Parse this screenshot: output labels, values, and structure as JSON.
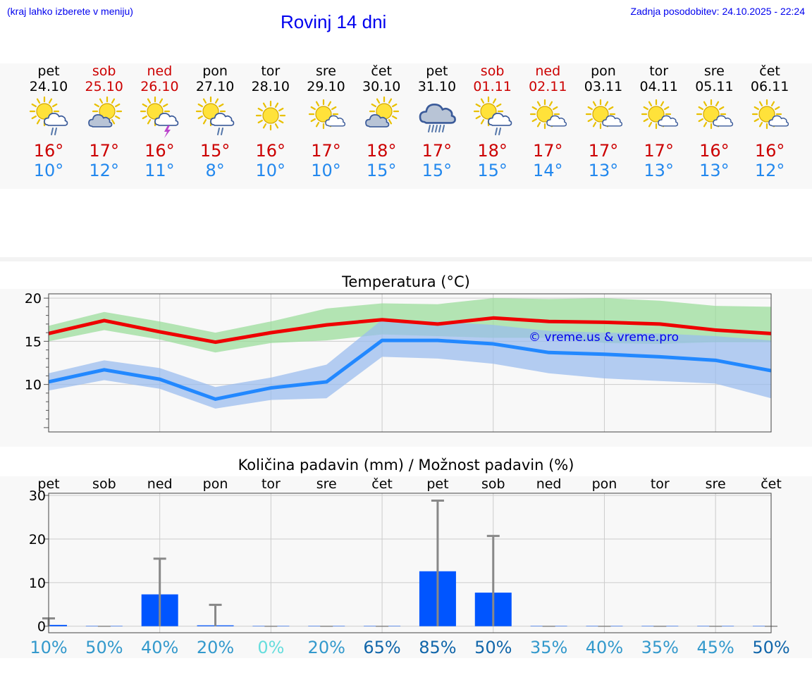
{
  "header": {
    "note": "(kraj lahko izberete v meniju)",
    "title": "Rovinj 14 dni",
    "updated": "Zadnja posodobitev: 24.10.2025 - 22:24"
  },
  "colors": {
    "weekday": "#000000",
    "weekend": "#cc0000",
    "tmax": "#cc0000",
    "tmin": "#2288ee",
    "bar": "#0055ff",
    "link": "#0000ee"
  },
  "days": [
    {
      "name": "pet",
      "date": "24.10",
      "weekend": false,
      "icon": "sun-cloud-rain-icon",
      "tmax": "16°",
      "tmin": "10°"
    },
    {
      "name": "sob",
      "date": "25.10",
      "weekend": true,
      "icon": "sun-cloud-icon",
      "tmax": "17°",
      "tmin": "12°"
    },
    {
      "name": "ned",
      "date": "26.10",
      "weekend": true,
      "icon": "sun-cloud-thunder-icon",
      "tmax": "16°",
      "tmin": "11°"
    },
    {
      "name": "pon",
      "date": "27.10",
      "weekend": false,
      "icon": "sun-cloud-rain-icon",
      "tmax": "15°",
      "tmin": "8°"
    },
    {
      "name": "tor",
      "date": "28.10",
      "weekend": false,
      "icon": "sun-icon",
      "tmax": "16°",
      "tmin": "10°"
    },
    {
      "name": "sre",
      "date": "29.10",
      "weekend": false,
      "icon": "sun-small-cloud-icon",
      "tmax": "17°",
      "tmin": "10°"
    },
    {
      "name": "čet",
      "date": "30.10",
      "weekend": false,
      "icon": "sun-cloud-icon",
      "tmax": "18°",
      "tmin": "15°"
    },
    {
      "name": "pet",
      "date": "31.10",
      "weekend": false,
      "icon": "cloud-heavy-rain-icon",
      "tmax": "17°",
      "tmin": "15°"
    },
    {
      "name": "sob",
      "date": "01.11",
      "weekend": true,
      "icon": "sun-cloud-rain-icon",
      "tmax": "18°",
      "tmin": "15°"
    },
    {
      "name": "ned",
      "date": "02.11",
      "weekend": true,
      "icon": "sun-small-cloud-icon",
      "tmax": "17°",
      "tmin": "14°"
    },
    {
      "name": "pon",
      "date": "03.11",
      "weekend": false,
      "icon": "sun-small-cloud-icon",
      "tmax": "17°",
      "tmin": "13°"
    },
    {
      "name": "tor",
      "date": "04.11",
      "weekend": false,
      "icon": "sun-small-cloud-icon",
      "tmax": "17°",
      "tmin": "13°"
    },
    {
      "name": "sre",
      "date": "05.11",
      "weekend": false,
      "icon": "sun-small-cloud-icon",
      "tmax": "16°",
      "tmin": "13°"
    },
    {
      "name": "čet",
      "date": "06.11",
      "weekend": false,
      "icon": "sun-small-cloud-icon",
      "tmax": "16°",
      "tmin": "12°"
    }
  ],
  "chart_data": [
    {
      "type": "line",
      "title": "Temperatura (°C)",
      "watermark": "© vreme.us & vreme.pro",
      "ylim": [
        4.5,
        20.5
      ],
      "yticks": [
        10,
        15,
        20
      ],
      "x": [
        0,
        1,
        2,
        3,
        4,
        5,
        6,
        7,
        8,
        9,
        10,
        11,
        12,
        13
      ],
      "series": [
        {
          "name": "max",
          "color": "#ee0000",
          "values": [
            15.9,
            17.4,
            16.1,
            14.9,
            16.0,
            16.9,
            17.5,
            17.0,
            17.7,
            17.3,
            17.2,
            17.0,
            16.3,
            15.9
          ]
        },
        {
          "name": "min",
          "color": "#2288ff",
          "values": [
            10.3,
            11.7,
            10.6,
            8.3,
            9.6,
            10.3,
            15.1,
            15.1,
            14.7,
            13.7,
            13.5,
            13.2,
            12.8,
            11.6
          ]
        }
      ],
      "bands": [
        {
          "name": "max-range",
          "color": "#99dd99",
          "low": [
            15.0,
            16.3,
            15.2,
            13.7,
            14.8,
            15.1,
            15.8,
            15.6,
            15.4,
            15.4,
            14.8,
            14.7,
            14.9,
            14.9
          ],
          "high": [
            16.8,
            18.4,
            17.3,
            16.0,
            17.3,
            18.8,
            19.4,
            19.3,
            20.0,
            19.9,
            20.0,
            19.7,
            19.1,
            19.0
          ]
        },
        {
          "name": "min-range",
          "color": "#99bbee",
          "low": [
            9.3,
            10.5,
            9.5,
            7.2,
            8.2,
            8.4,
            13.2,
            13.0,
            12.4,
            11.3,
            10.7,
            10.4,
            10.1,
            8.4
          ],
          "high": [
            11.3,
            12.8,
            11.9,
            9.7,
            10.8,
            12.3,
            17.5,
            17.3,
            16.9,
            16.2,
            16.0,
            15.9,
            15.6,
            15.1
          ]
        }
      ]
    },
    {
      "type": "bar",
      "title": "Količina padavin (mm) / Možnost padavin (%)",
      "ylim": [
        -1.5,
        30.5
      ],
      "yticks": [
        0,
        10,
        20,
        30
      ],
      "categories": [
        "pet",
        "sob",
        "ned",
        "pon",
        "tor",
        "sre",
        "čet",
        "pet",
        "sob",
        "ned",
        "pon",
        "tor",
        "sre",
        "čet"
      ],
      "values": [
        0.3,
        0,
        7.3,
        0.2,
        0,
        0,
        0,
        12.6,
        7.7,
        0,
        0,
        0,
        0,
        0
      ],
      "error_high": [
        1.8,
        0,
        15.5,
        4.9,
        0,
        0,
        0,
        28.8,
        20.7,
        0,
        0,
        0,
        0,
        0
      ],
      "probabilities": [
        "10%",
        "50%",
        "40%",
        "20%",
        "0%",
        "20%",
        "65%",
        "85%",
        "50%",
        "35%",
        "40%",
        "35%",
        "45%",
        "50%"
      ],
      "probability_colors": [
        "#3399cc",
        "#3399cc",
        "#3399cc",
        "#3399cc",
        "#66dddd",
        "#3399cc",
        "#1166aa",
        "#1166aa",
        "#1166aa",
        "#3399cc",
        "#3399cc",
        "#3399cc",
        "#3399cc",
        "#1166aa"
      ]
    }
  ]
}
